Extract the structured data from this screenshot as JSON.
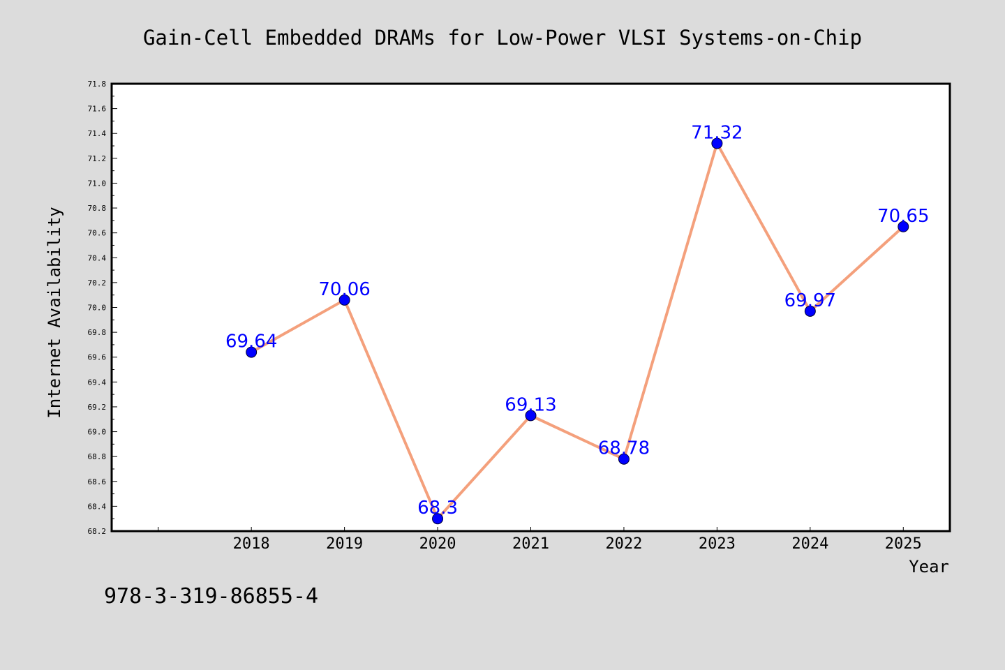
{
  "chart_data": {
    "type": "line",
    "title": "Gain-Cell Embedded DRAMs for Low-Power VLSI Systems-on-Chip",
    "xlabel": "Year",
    "ylabel": "Internet Availability",
    "footer_text": "978-3-319-86855-4",
    "x": [
      2018,
      2019,
      2020,
      2021,
      2022,
      2023,
      2024,
      2025
    ],
    "x_tick_labels": [
      "2018",
      "2019",
      "2020",
      "2021",
      "2022",
      "2023",
      "2024",
      "2025"
    ],
    "series": [
      {
        "values": [
          69.64,
          70.06,
          68.3,
          69.13,
          68.78,
          71.32,
          69.97,
          70.65
        ]
      }
    ],
    "data_labels": [
      "69.64",
      "70.06",
      "68.3",
      "69.13",
      "68.78",
      "71.32",
      "69.97",
      "70.65"
    ],
    "y_tick_labels": [
      "68.2",
      "68.4",
      "68.6",
      "68.8",
      "69.0",
      "69.2",
      "69.4",
      "69.6",
      "69.8",
      "70.0",
      "70.2",
      "70.4",
      "70.6",
      "70.8",
      "71.0",
      "71.2",
      "71.4",
      "71.6",
      "71.8"
    ],
    "ylim": [
      68.2,
      71.8
    ],
    "xlim": [
      2016.5,
      2025.5
    ],
    "grid": false,
    "colors": {
      "background": "#dcdcdc",
      "plot_background": "#ffffff",
      "line": "#f4a07c",
      "marker": "#0000ff",
      "data_label": "#0000ff",
      "text": "#000000"
    }
  }
}
